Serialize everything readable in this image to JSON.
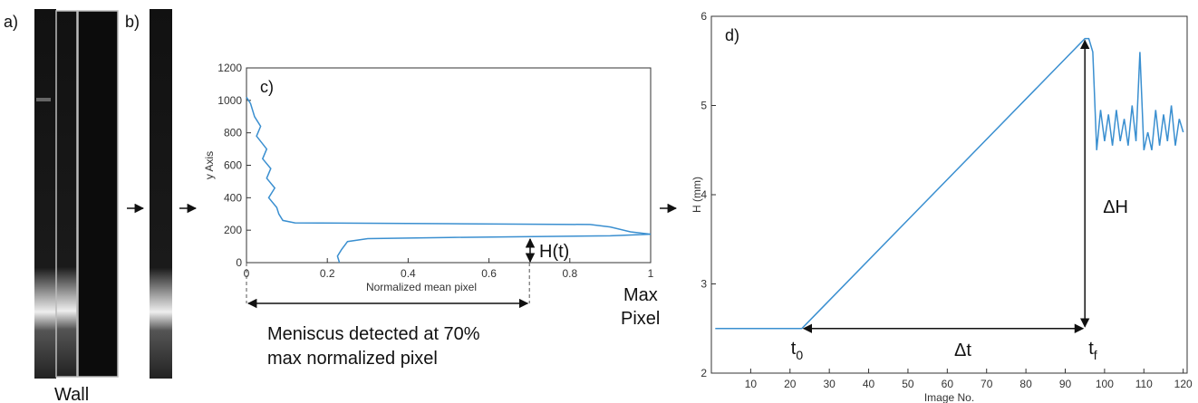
{
  "panels": {
    "a": "a)",
    "b": "b)",
    "wall": "Wall",
    "caption": [
      "Meniscus detected at 70%",
      "max normalized pixel"
    ]
  },
  "chart_data": [
    {
      "type": "line",
      "label": "c)",
      "xlabel": "Normalized mean pixel",
      "ylabel": "y Axis",
      "xlim": [
        0,
        1
      ],
      "ylim": [
        0,
        1200
      ],
      "xticks": [
        0,
        0.2,
        0.4,
        0.6,
        0.8,
        1
      ],
      "yticks": [
        0,
        200,
        400,
        600,
        800,
        1000,
        1200
      ],
      "color": "#3a8fd0",
      "threshold": 0.7,
      "height_label": "H(t)",
      "max_pixel": [
        "Max",
        "Pixel"
      ],
      "x": [
        0.0,
        0.01,
        0.02,
        0.035,
        0.025,
        0.05,
        0.04,
        0.06,
        0.05,
        0.07,
        0.055,
        0.075,
        0.08,
        0.09,
        0.12,
        0.5,
        0.85,
        0.9,
        0.95,
        1.0,
        0.9,
        0.5,
        0.3,
        0.25,
        0.235,
        0.225,
        0.23
      ],
      "values": [
        1020,
        980,
        900,
        840,
        780,
        700,
        640,
        580,
        520,
        460,
        400,
        340,
        300,
        260,
        245,
        240,
        235,
        220,
        190,
        175,
        165,
        155,
        148,
        130,
        80,
        40,
        0
      ]
    },
    {
      "type": "line",
      "label": "d)",
      "xlabel": "Image No.",
      "ylabel": "H (mm)",
      "xlim": [
        0,
        121
      ],
      "ylim": [
        2,
        6
      ],
      "xticks": [
        10,
        20,
        30,
        40,
        50,
        60,
        70,
        80,
        90,
        100,
        110,
        120
      ],
      "yticks": [
        2,
        3,
        4,
        5,
        6
      ],
      "color": "#3a8fd0",
      "annotations": {
        "t0": {
          "text": "t",
          "sub": "0"
        },
        "dt": "Δt",
        "tf": {
          "text": "t",
          "sub": "f"
        },
        "dh": "ΔH"
      },
      "x": [
        1,
        23,
        95,
        96,
        97,
        98,
        99,
        100,
        101,
        102,
        103,
        104,
        105,
        106,
        107,
        108,
        109,
        110,
        111,
        112,
        113,
        114,
        115,
        116,
        117,
        118,
        119,
        120
      ],
      "values": [
        2.5,
        2.5,
        5.75,
        5.75,
        5.6,
        4.5,
        4.95,
        4.6,
        4.9,
        4.55,
        4.95,
        4.6,
        4.85,
        4.55,
        5.0,
        4.6,
        5.6,
        4.5,
        4.7,
        4.5,
        4.95,
        4.55,
        4.9,
        4.6,
        5.0,
        4.55,
        4.85,
        4.7
      ]
    }
  ]
}
